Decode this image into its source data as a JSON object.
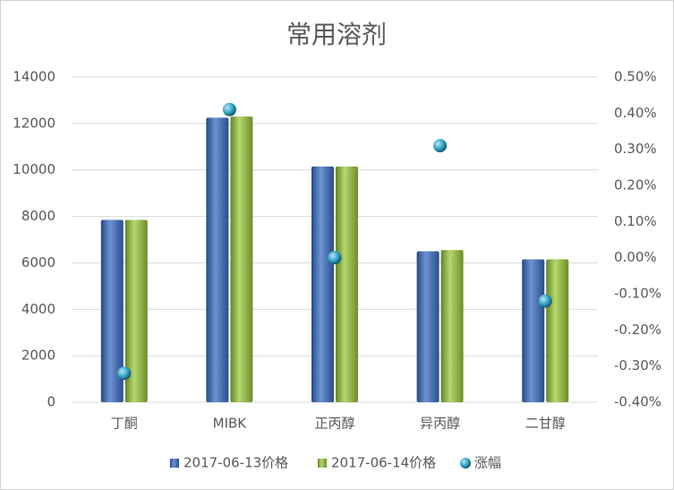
{
  "chart_data": {
    "type": "bar",
    "title": "常用溶剂",
    "categories": [
      "丁酮",
      "MIBK",
      "正丙醇",
      "异丙醇",
      "二甘醇"
    ],
    "series": [
      {
        "name": "2017-06-13价格",
        "color": "#3b6fc6",
        "values": [
          7850,
          12250,
          10150,
          6500,
          6150
        ]
      },
      {
        "name": "2017-06-14价格",
        "color": "#9cc93c",
        "values": [
          7850,
          12300,
          10150,
          6550,
          6150
        ]
      },
      {
        "name": "涨幅",
        "type": "scatter",
        "axis": "y2",
        "color": "#2ea6c8",
        "values": [
          -0.32,
          0.41,
          0,
          0.31,
          -0.12
        ]
      }
    ],
    "ylim": [
      0,
      14000
    ],
    "yticks": [
      0,
      2000,
      4000,
      6000,
      8000,
      10000,
      12000,
      14000
    ],
    "y2lim": [
      -0.4,
      0.5
    ],
    "y2ticks": [
      {
        "value": -0.4,
        "label": "-0.40%"
      },
      {
        "value": -0.3,
        "label": "-0.30%"
      },
      {
        "value": -0.2,
        "label": "-0.20%"
      },
      {
        "value": -0.1,
        "label": "-0.10%"
      },
      {
        "value": 0,
        "label": "0.00%"
      },
      {
        "value": 0.1,
        "label": "0.10%"
      },
      {
        "value": 0.2,
        "label": "0.20%"
      },
      {
        "value": 0.3,
        "label": "0.30%"
      },
      {
        "value": 0.4,
        "label": "0.40%"
      },
      {
        "value": 0.5,
        "label": "0.50%"
      }
    ],
    "grid": true,
    "legend": "bottom"
  }
}
